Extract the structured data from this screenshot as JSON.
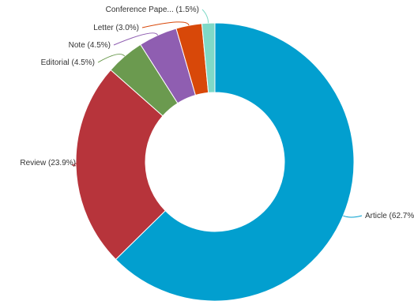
{
  "chart_data": {
    "type": "pie",
    "variant": "donut",
    "title": "",
    "legend": "none",
    "slices": [
      {
        "name": "Article",
        "value": 62.7,
        "label": "Article (62.7%)",
        "color": "#029fcf"
      },
      {
        "name": "Review",
        "value": 23.9,
        "label": "Review (23.9%)",
        "color": "#b7343b"
      },
      {
        "name": "Editorial",
        "value": 4.5,
        "label": "Editorial (4.5%)",
        "color": "#6b9a4f"
      },
      {
        "name": "Note",
        "value": 4.5,
        "label": "Note (4.5%)",
        "color": "#8f5eb1"
      },
      {
        "name": "Letter",
        "value": 3.0,
        "label": "Letter (3.0%)",
        "color": "#d84809"
      },
      {
        "name": "Conference Pape...",
        "value": 1.5,
        "label": "Conference Pape... (1.5%)",
        "color": "#7fd9c7"
      }
    ]
  }
}
